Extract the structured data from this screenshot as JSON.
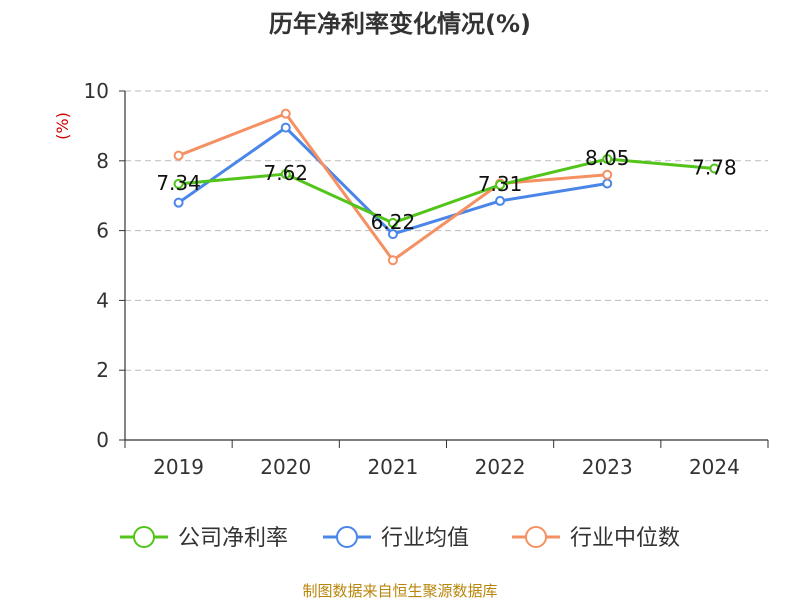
{
  "chart_data": {
    "type": "line",
    "title": "历年净利率变化情况(%)",
    "ylabel": "(%)",
    "xlabel": "",
    "categories": [
      "2019",
      "2020",
      "2021",
      "2022",
      "2023",
      "2024"
    ],
    "ylim": [
      0,
      10
    ],
    "yticks": [
      0,
      2,
      4,
      6,
      8,
      10
    ],
    "grid": "horizontal-dashed",
    "legend_position": "bottom",
    "series": [
      {
        "name": "公司净利率",
        "color": "#52c41a",
        "values": [
          7.34,
          7.62,
          6.22,
          7.31,
          8.05,
          7.78
        ],
        "labels": [
          "7.34",
          "7.62",
          "6.22",
          "7.31",
          "8.05",
          "7.78"
        ]
      },
      {
        "name": "行业均值",
        "color": "#4a86e8",
        "values": [
          6.8,
          8.95,
          5.9,
          6.85,
          7.35,
          null
        ]
      },
      {
        "name": "行业中位数",
        "color": "#f59062",
        "values": [
          8.15,
          9.35,
          5.15,
          7.35,
          7.6,
          null
        ]
      }
    ],
    "source": "制图数据来自恒生聚源数据库"
  }
}
